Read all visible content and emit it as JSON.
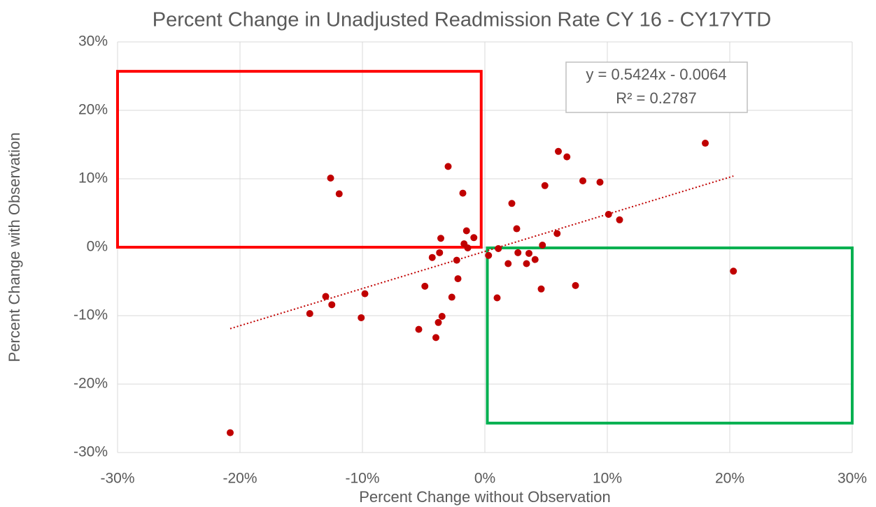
{
  "chart_data": {
    "type": "scatter",
    "title": "Percent Change in Unadjusted Readmission Rate CY 16 - CY17YTD",
    "x_label": "Percent Change without Observation",
    "y_label": "Percent Change with Observation",
    "xlim": [
      -30,
      30
    ],
    "ylim": [
      -30,
      30
    ],
    "xticks": [
      {
        "value": -30,
        "label": "-30%"
      },
      {
        "value": -20,
        "label": "-20%"
      },
      {
        "value": -10,
        "label": "-10%"
      },
      {
        "value": 0,
        "label": "0%"
      },
      {
        "value": 10,
        "label": "10%"
      },
      {
        "value": 20,
        "label": "20%"
      },
      {
        "value": 30,
        "label": "30%"
      }
    ],
    "yticks": [
      {
        "value": -30,
        "label": "-30%"
      },
      {
        "value": -20,
        "label": "-20%"
      },
      {
        "value": -10,
        "label": "-10%"
      },
      {
        "value": 0,
        "label": "0%"
      },
      {
        "value": 10,
        "label": "10%"
      },
      {
        "value": 20,
        "label": "20%"
      },
      {
        "value": 30,
        "label": "30%"
      }
    ],
    "grid": true,
    "color": "#c00000",
    "x": [
      -12.6,
      -11.9,
      -3.0,
      -1.8,
      -1.5,
      -3.6,
      -1.7,
      -1.4,
      -0.9,
      -3.7,
      -4.3,
      -2.3,
      -2.2,
      -4.9,
      -2.7,
      -3.5,
      -3.8,
      -4.0,
      -5.4,
      -9.8,
      -13.0,
      -12.5,
      -14.3,
      -10.1,
      -20.8,
      0.3,
      1.1,
      1.0,
      1.9,
      2.2,
      2.6,
      2.7,
      3.4,
      3.6,
      4.1,
      4.7,
      4.6,
      4.9,
      5.9,
      6.0,
      6.7,
      7.4,
      8.0,
      9.4,
      10.1,
      11.0,
      18.0,
      20.3
    ],
    "values": [
      10.1,
      7.8,
      11.8,
      7.9,
      2.4,
      1.3,
      0.5,
      -0.1,
      1.4,
      -0.8,
      -1.5,
      -1.9,
      -4.6,
      -5.7,
      -7.3,
      -10.1,
      -11.0,
      -13.2,
      -12.0,
      -6.8,
      -7.2,
      -8.4,
      -9.7,
      -10.3,
      -27.1,
      -1.2,
      -0.2,
      -7.4,
      -2.4,
      6.4,
      2.7,
      -0.8,
      -2.4,
      -0.9,
      -1.8,
      0.3,
      -6.1,
      9.0,
      2.0,
      14.0,
      13.2,
      -5.6,
      9.7,
      9.5,
      4.8,
      4.0,
      15.2,
      -3.5
    ],
    "trendline": {
      "x": [
        -20.8,
        20.3
      ],
      "values": [
        -11.9,
        10.4
      ],
      "color": "#c00000"
    },
    "annotation": [
      "y = 0.5424x - 0.0064",
      "R² = 0.2787"
    ],
    "highlight_boxes": [
      {
        "x": [
          -30,
          -0.3
        ],
        "y": [
          0,
          25.7
        ],
        "color": "#ff0000"
      },
      {
        "x": [
          0.2,
          30
        ],
        "y": [
          -25.7,
          -0.1
        ],
        "color": "#00b050"
      }
    ]
  }
}
